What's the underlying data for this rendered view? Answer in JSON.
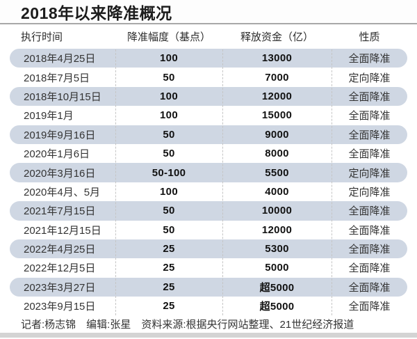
{
  "title": "2018年以来降准概况",
  "chart_data": {
    "type": "table",
    "title": "2018年以来降准概况",
    "columns": [
      "执行时间",
      "降准幅度（基点）",
      "释放资金（亿）",
      "性质"
    ],
    "rows": [
      [
        "2018年4月25日",
        "100",
        "13000",
        "全面降准"
      ],
      [
        "2018年7月5日",
        "50",
        "7000",
        "定向降准"
      ],
      [
        "2018年10月15日",
        "100",
        "12000",
        "全面降准"
      ],
      [
        "2019年1月",
        "100",
        "15000",
        "全面降准"
      ],
      [
        "2019年9月16日",
        "50",
        "9000",
        "全面降准"
      ],
      [
        "2020年1月6日",
        "50",
        "8000",
        "全面降准"
      ],
      [
        "2020年3月16日",
        "50-100",
        "5500",
        "定向降准"
      ],
      [
        "2020年4月、5月",
        "100",
        "4000",
        "定向降准"
      ],
      [
        "2021年7月15日",
        "50",
        "10000",
        "全面降准"
      ],
      [
        "2021年12月15日",
        "50",
        "12000",
        "全面降准"
      ],
      [
        "2022年4月25日",
        "25",
        "5300",
        "全面降准"
      ],
      [
        "2022年12月5日",
        "25",
        "5000",
        "全面降准"
      ],
      [
        "2023年3月27日",
        "25",
        "超5000",
        "全面降准"
      ],
      [
        "2023年9月15日",
        "25",
        "超5000",
        "全面降准"
      ]
    ],
    "shaded_row_indices": [
      0,
      2,
      4,
      6,
      8,
      10,
      12
    ]
  },
  "footer": {
    "reporter": "记者:杨志锦",
    "editor": "编辑:张星",
    "source": "资料来源:根据央行网站整理、21世纪经济报道"
  },
  "colors": {
    "row_shaded": "#cfd7e3",
    "title_rule": "#a8a8a8",
    "column_divider": "#c5c5c5",
    "bottom_strip": "#d4d4d4",
    "number_text": "#111111"
  }
}
